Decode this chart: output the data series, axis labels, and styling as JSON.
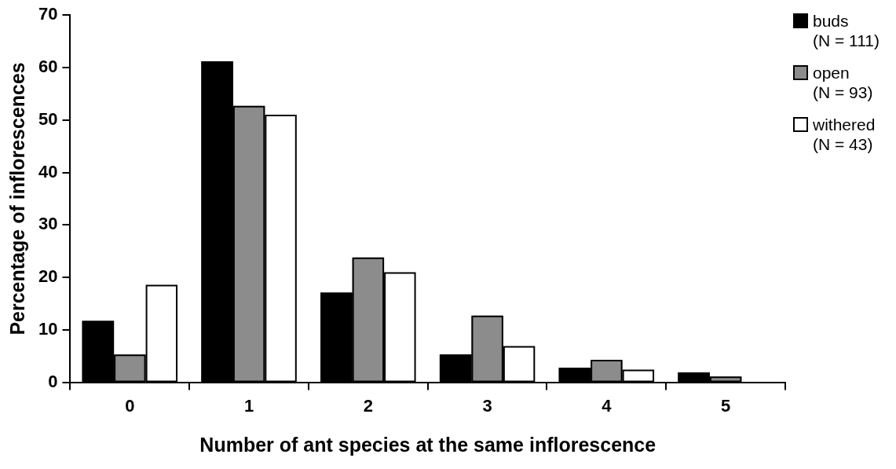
{
  "chart_data": {
    "type": "bar",
    "xlabel": "Number of ant species at the same inflorescence",
    "ylabel": "Percentage of inflorescences",
    "categories": [
      "0",
      "1",
      "2",
      "3",
      "4",
      "5"
    ],
    "series": [
      {
        "name": "buds\n(N = 111)",
        "color": "#000000",
        "values": [
          11.7,
          61.2,
          17.1,
          5.3,
          2.8,
          1.9
        ]
      },
      {
        "name": "open\n(N = 93)",
        "color": "#8c8c8c",
        "values": [
          5.3,
          52.7,
          23.8,
          12.7,
          4.3,
          1.1
        ]
      },
      {
        "name": "withered\n(N = 43)",
        "color": "#ffffff",
        "values": [
          18.6,
          51.0,
          21.0,
          6.9,
          2.4,
          0
        ]
      }
    ],
    "ylim": [
      0,
      70
    ],
    "yticks": [
      0,
      10,
      20,
      30,
      40,
      50,
      60,
      70
    ],
    "grid": false,
    "legend": "top right"
  }
}
